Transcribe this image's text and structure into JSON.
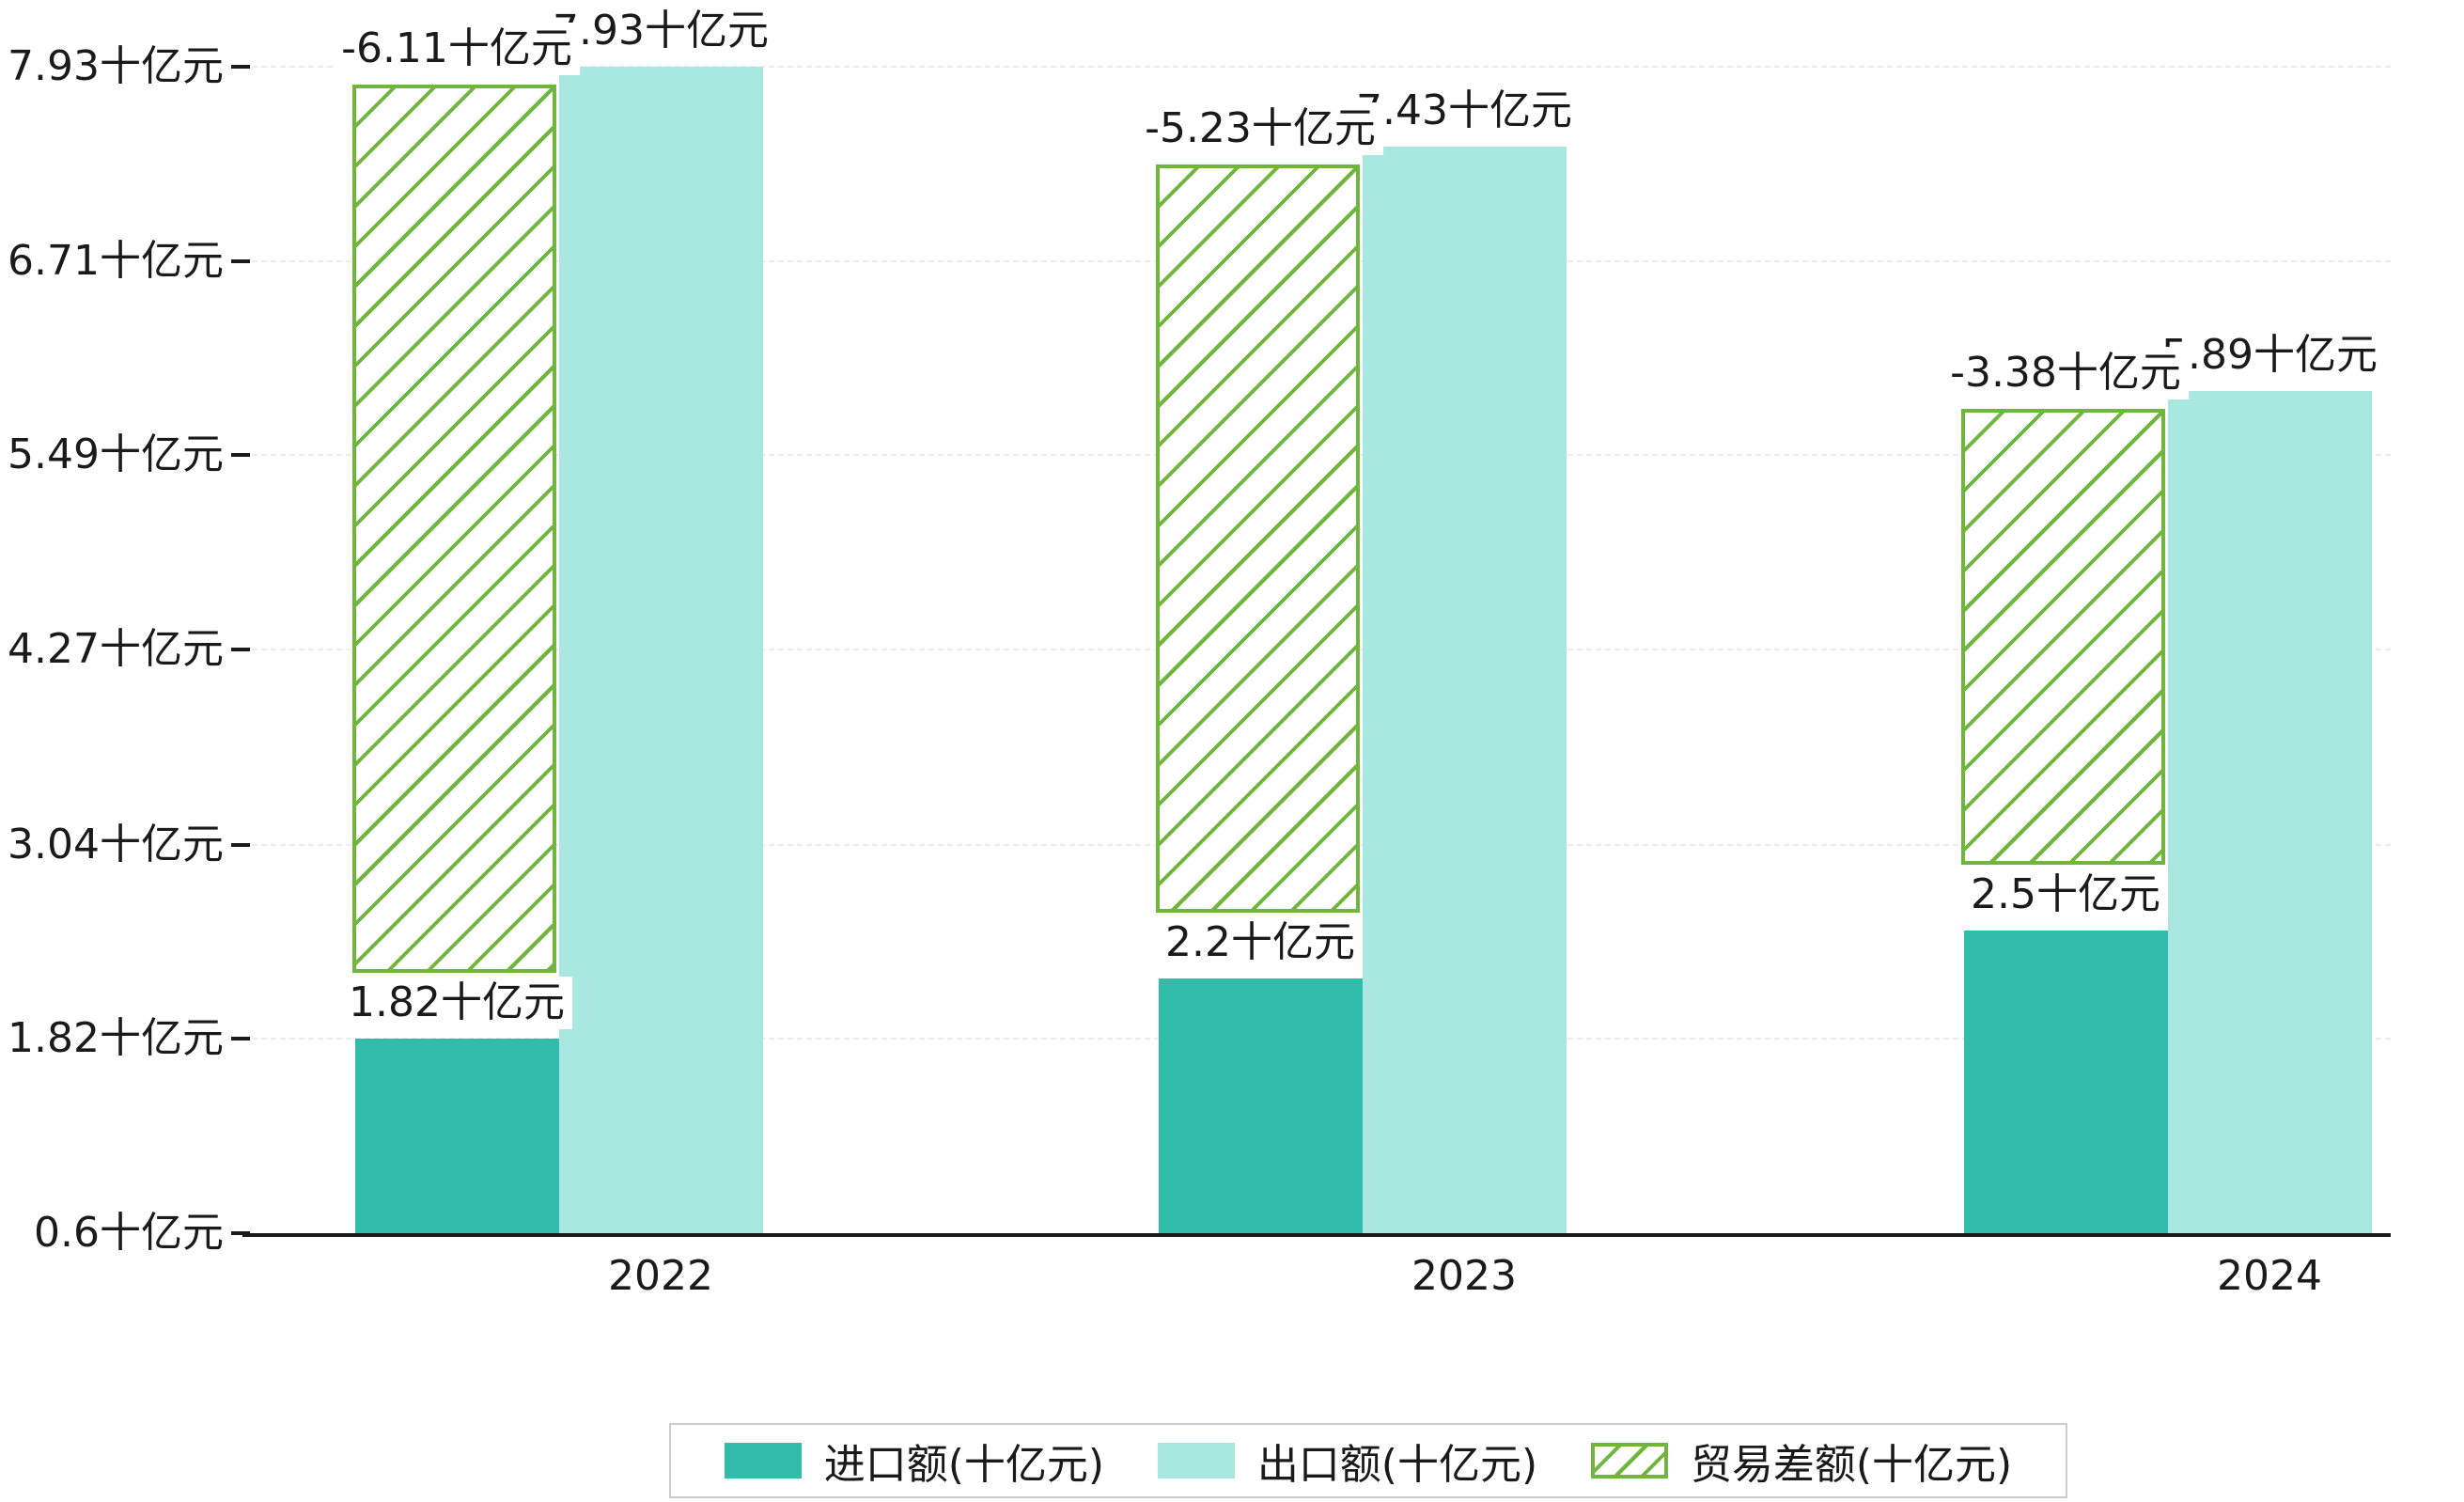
{
  "chart_data": {
    "type": "bar",
    "title": "",
    "categories": [
      "2022",
      "2023",
      "2024"
    ],
    "series": [
      {
        "name": "进口额(十亿元)",
        "values": [
          1.82,
          2.2,
          2.5
        ]
      },
      {
        "name": "出口额(十亿元)",
        "values": [
          7.93,
          7.43,
          5.89
        ]
      },
      {
        "name": "贸易差额(十亿元)",
        "values": [
          -6.11,
          -5.23,
          -3.38
        ]
      }
    ],
    "bar_labels": {
      "import": [
        "1.82十亿元",
        "2.2十亿元",
        "2.5十亿元"
      ],
      "export": [
        "7.93十亿元",
        "7.43十亿元",
        "5.89十亿元"
      ],
      "balance": [
        "-6.11十亿元",
        "-5.23十亿元",
        "-3.38十亿元"
      ]
    },
    "y_ticks": [
      {
        "value": 7.93,
        "label": "7.93十亿元"
      },
      {
        "value": 6.71,
        "label": "6.71十亿元"
      },
      {
        "value": 5.49,
        "label": "5.49十亿元"
      },
      {
        "value": 4.27,
        "label": "4.27十亿元"
      },
      {
        "value": 3.04,
        "label": "3.04十亿元"
      },
      {
        "value": 1.82,
        "label": "1.82十亿元"
      },
      {
        "value": 0.6,
        "label": "0.6十亿元"
      }
    ],
    "ylim": [
      0.6,
      7.93
    ],
    "xlabel": "",
    "ylabel": "",
    "unit": "十亿元",
    "grid": true,
    "legend_position": "bottom",
    "colors": {
      "import": "#31bcab",
      "export": "#a9e8e1",
      "balance_line": "#70b53c",
      "axis": "#1a1a1a",
      "grid": "#ededed",
      "legend_border": "#cccccc"
    }
  }
}
